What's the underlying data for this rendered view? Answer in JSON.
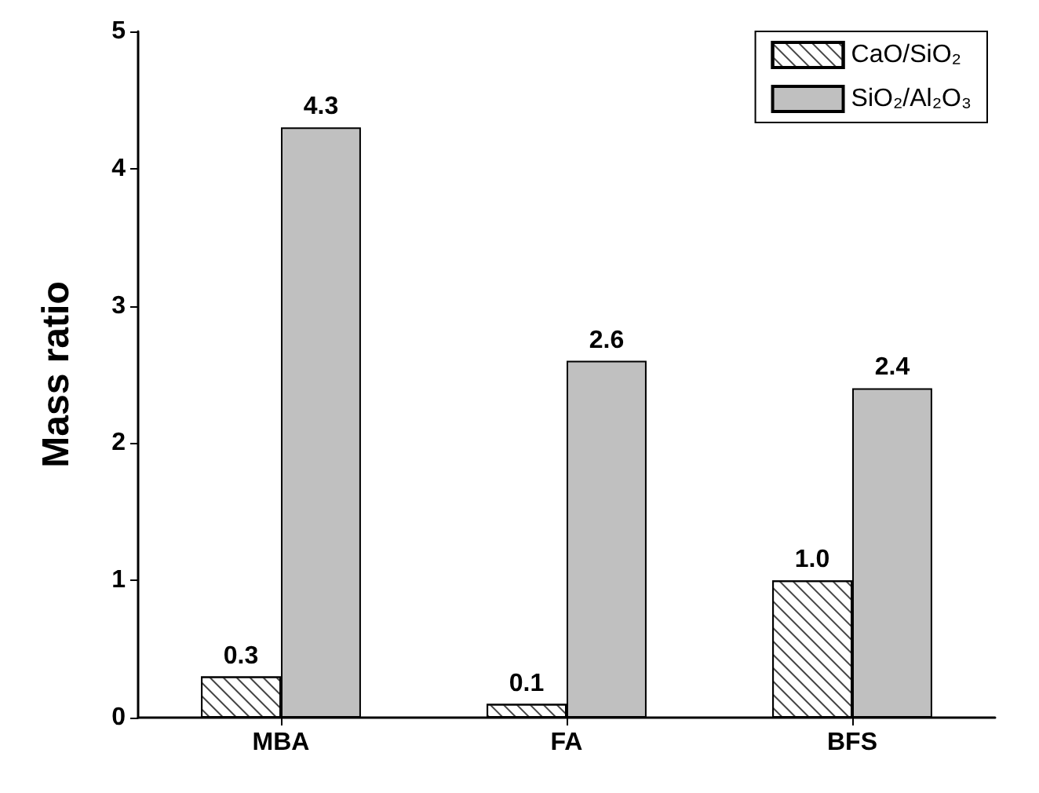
{
  "chart_data": {
    "type": "bar",
    "ylabel": "Mass ratio",
    "categories": [
      "MBA",
      "FA",
      "BFS"
    ],
    "series": [
      {
        "name": "CaO/SiO₂",
        "color": "#ffffff",
        "values": [
          0.3,
          0.1,
          1.0
        ],
        "value_labels": [
          "0.3",
          "0.1",
          "1.0"
        ]
      },
      {
        "name": "SiO₂/Al₂O₃",
        "color": "#c0c0c0",
        "values": [
          4.3,
          2.6,
          2.4
        ],
        "value_labels": [
          "4.3",
          "2.6",
          "2.4"
        ]
      }
    ],
    "ylim": [
      0,
      5
    ],
    "yticks": [
      0,
      1,
      2,
      3,
      4,
      5
    ],
    "legend": "top right",
    "grid": false
  }
}
